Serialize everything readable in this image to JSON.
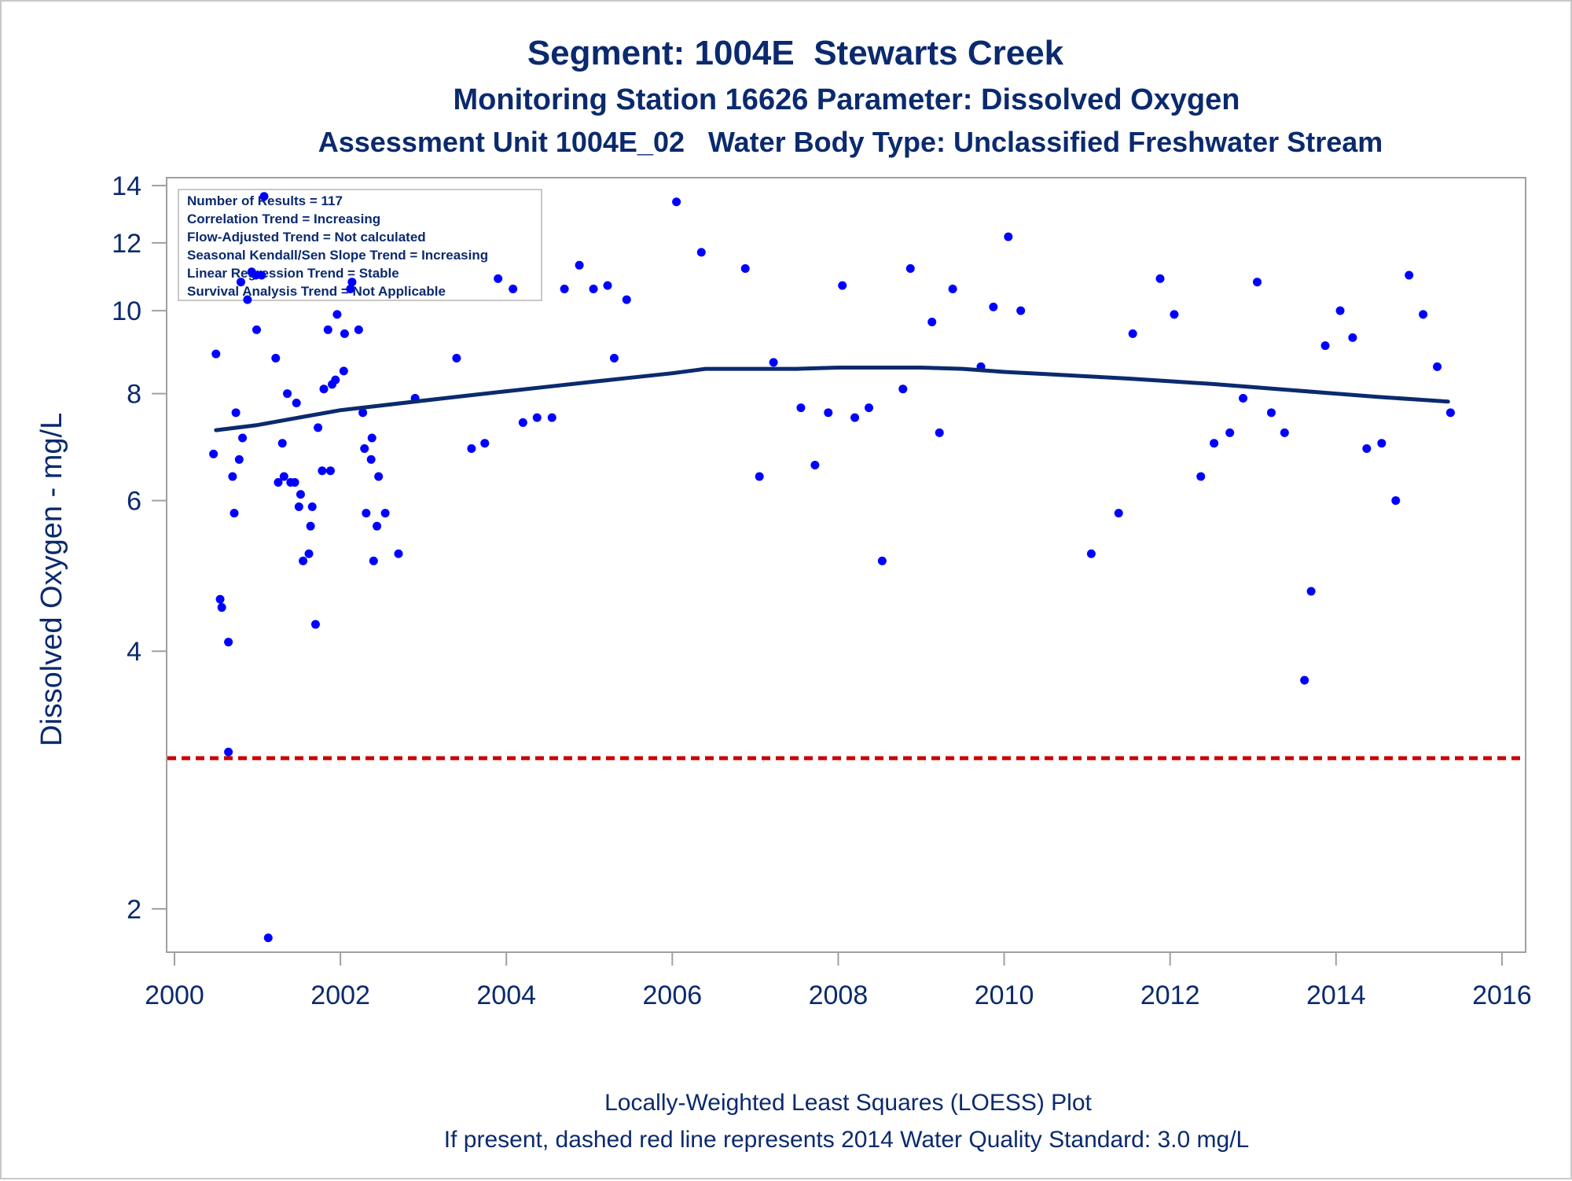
{
  "chart_data": {
    "type": "scatter",
    "title": "Segment: 1004E  Stewarts Creek",
    "subtitle1": "Monitoring Station 16626 Parameter: Dissolved Oxygen",
    "subtitle2": "Assessment Unit 1004E_02   Water Body Type: Unclassified Freshwater Stream",
    "ylabel": "Dissolved Oxygen - mg/L",
    "xlabel": "",
    "x_scale": "linear",
    "y_scale": "log",
    "xlim": [
      2000,
      2016.2
    ],
    "ylim": [
      1.78,
      14.3
    ],
    "x_ticks": [
      "2000",
      "2002",
      "2004",
      "2006",
      "2008",
      "2010",
      "2012",
      "2014",
      "2016"
    ],
    "y_ticks": [
      "2",
      "4",
      "6",
      "8",
      "10",
      "12",
      "14"
    ],
    "grid": false,
    "colors": {
      "points": "#0000ff",
      "loess": "#0b2a6e",
      "standard": "#cc0000",
      "text": "#0b2a6e"
    },
    "stats_box": [
      "Number of Results = 117",
      "Correlation Trend = Increasing",
      "Flow-Adjusted Trend = Not calculated",
      "Seasonal Kendall/Sen Slope Trend = Increasing",
      "Linear Regression Trend = Stable",
      "Survival Analysis Trend = Not Applicable"
    ],
    "footer": [
      "Locally-Weighted Least Squares (LOESS) Plot",
      "If present, dashed red line represents 2014 Water Quality Standard: 3.0 mg/L"
    ],
    "standard_line": {
      "y": 3.0
    },
    "loess": [
      [
        2000.5,
        7.25
      ],
      [
        2001.0,
        7.35
      ],
      [
        2001.5,
        7.5
      ],
      [
        2002.0,
        7.65
      ],
      [
        2002.5,
        7.75
      ],
      [
        2003.0,
        7.85
      ],
      [
        2003.5,
        7.95
      ],
      [
        2004.0,
        8.05
      ],
      [
        2004.5,
        8.15
      ],
      [
        2005.0,
        8.25
      ],
      [
        2005.5,
        8.35
      ],
      [
        2006.0,
        8.45
      ],
      [
        2006.4,
        8.55
      ],
      [
        2007.0,
        8.55
      ],
      [
        2007.5,
        8.55
      ],
      [
        2008.0,
        8.58
      ],
      [
        2008.5,
        8.58
      ],
      [
        2009.0,
        8.58
      ],
      [
        2009.5,
        8.55
      ],
      [
        2010.0,
        8.48
      ],
      [
        2010.5,
        8.43
      ],
      [
        2011.0,
        8.38
      ],
      [
        2011.5,
        8.33
      ],
      [
        2012.0,
        8.27
      ],
      [
        2012.5,
        8.21
      ],
      [
        2013.0,
        8.14
      ],
      [
        2013.5,
        8.07
      ],
      [
        2014.0,
        8.0
      ],
      [
        2014.5,
        7.93
      ],
      [
        2015.0,
        7.87
      ],
      [
        2015.35,
        7.83
      ]
    ],
    "points": [
      [
        2000.47,
        6.8
      ],
      [
        2000.5,
        8.9
      ],
      [
        2000.55,
        4.6
      ],
      [
        2000.57,
        4.5
      ],
      [
        2000.65,
        4.1
      ],
      [
        2000.65,
        3.05
      ],
      [
        2000.7,
        6.4
      ],
      [
        2000.72,
        5.8
      ],
      [
        2000.74,
        7.6
      ],
      [
        2000.78,
        6.7
      ],
      [
        2000.8,
        10.8
      ],
      [
        2000.82,
        7.1
      ],
      [
        2000.88,
        10.3
      ],
      [
        2000.93,
        11.1
      ],
      [
        2000.98,
        11.0
      ],
      [
        2000.99,
        9.5
      ],
      [
        2001.05,
        11.0
      ],
      [
        2001.08,
        13.6
      ],
      [
        2001.13,
        1.85
      ],
      [
        2001.22,
        8.8
      ],
      [
        2001.25,
        6.3
      ],
      [
        2001.3,
        7.0
      ],
      [
        2001.32,
        6.4
      ],
      [
        2001.36,
        8.0
      ],
      [
        2001.4,
        6.3
      ],
      [
        2001.45,
        6.3
      ],
      [
        2001.47,
        7.8
      ],
      [
        2001.5,
        5.9
      ],
      [
        2001.52,
        6.1
      ],
      [
        2001.55,
        5.1
      ],
      [
        2001.62,
        5.2
      ],
      [
        2001.64,
        5.6
      ],
      [
        2001.66,
        5.9
      ],
      [
        2001.7,
        4.3
      ],
      [
        2001.73,
        7.3
      ],
      [
        2001.78,
        6.5
      ],
      [
        2001.8,
        8.1
      ],
      [
        2001.85,
        9.5
      ],
      [
        2001.88,
        6.5
      ],
      [
        2001.9,
        8.2
      ],
      [
        2001.94,
        8.3
      ],
      [
        2001.96,
        9.9
      ],
      [
        2002.04,
        8.5
      ],
      [
        2002.05,
        9.4
      ],
      [
        2002.12,
        10.6
      ],
      [
        2002.14,
        10.8
      ],
      [
        2002.22,
        9.5
      ],
      [
        2002.27,
        7.6
      ],
      [
        2002.29,
        6.9
      ],
      [
        2002.31,
        5.8
      ],
      [
        2002.37,
        6.7
      ],
      [
        2002.38,
        7.1
      ],
      [
        2002.4,
        5.1
      ],
      [
        2002.44,
        5.6
      ],
      [
        2002.46,
        6.4
      ],
      [
        2002.54,
        5.8
      ],
      [
        2002.7,
        5.2
      ],
      [
        2002.9,
        7.9
      ],
      [
        2003.4,
        8.8
      ],
      [
        2003.58,
        6.9
      ],
      [
        2003.74,
        7.0
      ],
      [
        2003.9,
        10.9
      ],
      [
        2004.08,
        10.6
      ],
      [
        2004.2,
        7.4
      ],
      [
        2004.37,
        7.5
      ],
      [
        2004.55,
        7.5
      ],
      [
        2004.7,
        10.6
      ],
      [
        2004.88,
        11.3
      ],
      [
        2005.05,
        10.6
      ],
      [
        2005.22,
        10.7
      ],
      [
        2005.3,
        8.8
      ],
      [
        2005.45,
        10.3
      ],
      [
        2006.05,
        13.4
      ],
      [
        2006.35,
        11.7
      ],
      [
        2006.88,
        11.2
      ],
      [
        2007.05,
        6.4
      ],
      [
        2007.22,
        8.7
      ],
      [
        2007.55,
        7.7
      ],
      [
        2007.72,
        6.6
      ],
      [
        2007.88,
        7.6
      ],
      [
        2008.05,
        10.7
      ],
      [
        2008.2,
        7.5
      ],
      [
        2008.37,
        7.7
      ],
      [
        2008.53,
        5.1
      ],
      [
        2008.78,
        8.1
      ],
      [
        2008.87,
        11.2
      ],
      [
        2009.13,
        9.7
      ],
      [
        2009.22,
        7.2
      ],
      [
        2009.38,
        10.6
      ],
      [
        2009.72,
        8.6
      ],
      [
        2009.87,
        10.1
      ],
      [
        2010.05,
        12.2
      ],
      [
        2010.2,
        10.0
      ],
      [
        2011.05,
        5.2
      ],
      [
        2011.38,
        5.8
      ],
      [
        2011.55,
        9.4
      ],
      [
        2011.88,
        10.9
      ],
      [
        2012.05,
        9.9
      ],
      [
        2012.37,
        6.4
      ],
      [
        2012.53,
        7.0
      ],
      [
        2012.72,
        7.2
      ],
      [
        2012.88,
        7.9
      ],
      [
        2013.05,
        10.8
      ],
      [
        2013.22,
        7.6
      ],
      [
        2013.38,
        7.2
      ],
      [
        2013.62,
        3.7
      ],
      [
        2013.7,
        4.7
      ],
      [
        2013.87,
        9.1
      ],
      [
        2014.05,
        10.0
      ],
      [
        2014.2,
        9.3
      ],
      [
        2014.37,
        6.9
      ],
      [
        2014.55,
        7.0
      ],
      [
        2014.72,
        6.0
      ],
      [
        2014.88,
        11.0
      ],
      [
        2015.05,
        9.9
      ],
      [
        2015.22,
        8.6
      ],
      [
        2015.38,
        7.6
      ]
    ]
  }
}
